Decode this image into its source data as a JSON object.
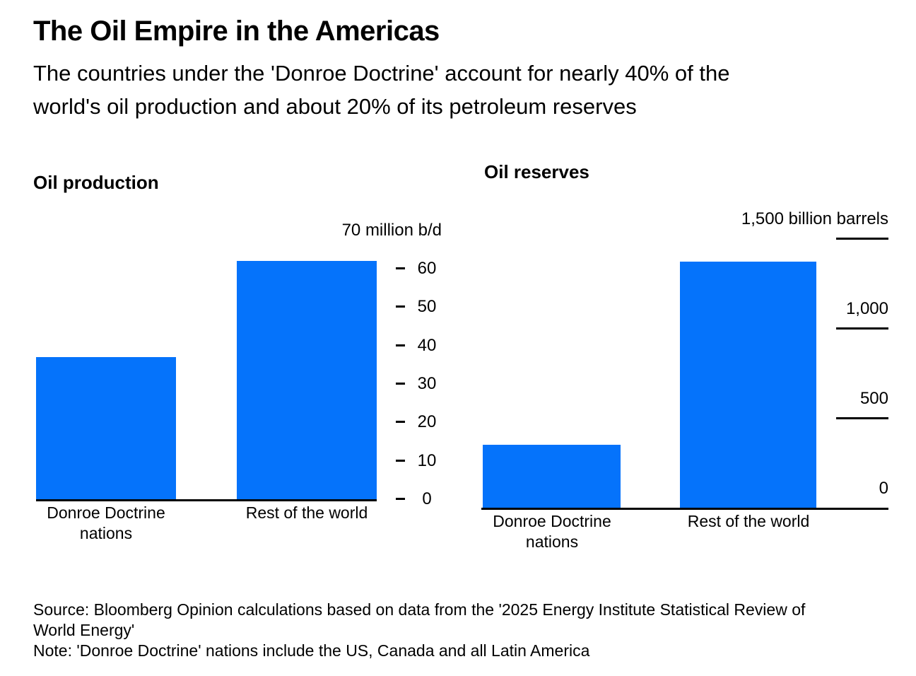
{
  "header": {
    "title": "The Oil Empire in the Americas",
    "subtitle_lines": [
      "The countries under the 'Donroe Doctrine' account for nearly 40% of the",
      "world's oil production and about 20% of its petroleum reserves"
    ]
  },
  "chart_data": [
    {
      "type": "bar",
      "title": "Oil production",
      "unit": "million b/d",
      "categories": [
        "Donroe Doctrine nations",
        "Rest of the world"
      ],
      "values": [
        37,
        62
      ],
      "ylim": [
        0,
        70
      ],
      "yticks": [
        70,
        60,
        50,
        40,
        30,
        20,
        10,
        0
      ],
      "ytick_labels": [
        "70 million b/d",
        "60",
        "50",
        "40",
        "30",
        "20",
        "10",
        "0"
      ],
      "legend": "none",
      "grid": false
    },
    {
      "type": "bar",
      "title": "Oil reserves",
      "unit": "billion barrels",
      "categories": [
        "Donroe Doctrine nations",
        "Rest of the world"
      ],
      "values": [
        350,
        1370
      ],
      "ylim": [
        0,
        1500
      ],
      "yticks": [
        1500,
        1000,
        500,
        0
      ],
      "ytick_labels": [
        "1,500 billion barrels",
        "1,000",
        "500",
        "0"
      ],
      "legend": "none",
      "grid": false
    }
  ],
  "footer": {
    "source_lines": [
      "Source: Bloomberg Opinion calculations based on data from the '2025 Energy Institute Statistical Review of",
      "World Energy'"
    ],
    "note": "Note: 'Donroe Doctrine' nations include the US, Canada and all Latin America"
  },
  "colors": {
    "bar": "#0573fb",
    "text": "#000000",
    "axis": "#000000"
  }
}
